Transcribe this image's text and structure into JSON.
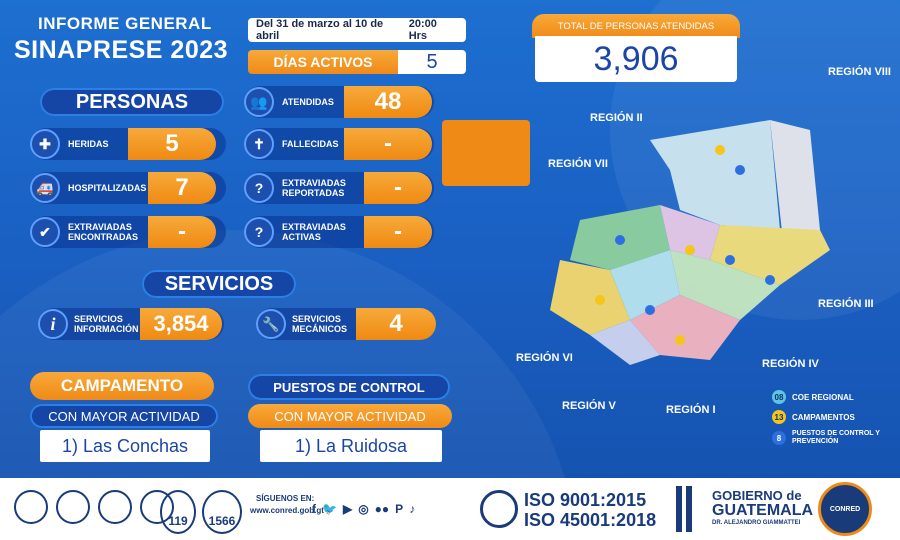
{
  "header": {
    "title_line1": "INFORME GENERAL",
    "title_line2": "SINAPRESE 2023"
  },
  "date_range": {
    "period": "Del 31 de marzo al 10 de abril",
    "time": "20:00 Hrs"
  },
  "dias_activos": {
    "label": "DÍAS ACTIVOS",
    "value": "5"
  },
  "total": {
    "label": "TOTAL DE PERSONAS ATENDIDAS",
    "value": "3,906"
  },
  "personas": {
    "heading": "PERSONAS",
    "heridas": {
      "label": "HERIDAS",
      "value": "5"
    },
    "hospitalizadas": {
      "label": "HOSPITALIZADAS",
      "value": "7"
    },
    "extraviadas_encontradas": {
      "label1": "EXTRAVIADAS",
      "label2": "ENCONTRADAS",
      "value": "-"
    },
    "atendidas": {
      "label": "ATENDIDAS",
      "value": "48"
    },
    "fallecidas": {
      "label": "FALLECIDAS",
      "value": "-"
    },
    "extraviadas_reportadas": {
      "label1": "EXTRAVIADAS",
      "label2": "REPORTADAS",
      "value": "-"
    },
    "extraviadas_activas": {
      "label1": "EXTRAVIADAS",
      "label2": "ACTIVAS",
      "value": "-"
    }
  },
  "servicios": {
    "heading": "SERVICIOS",
    "informacion": {
      "label1": "SERVICIOS",
      "label2": "INFORMACIÓN",
      "value": "3,854"
    },
    "mecanicos": {
      "label1": "SERVICIOS",
      "label2": "MECÁNICOS",
      "value": "4"
    }
  },
  "campamento": {
    "title": "CAMPAMENTO",
    "subtitle": "CON MAYOR ACTIVIDAD",
    "value": "1) Las Conchas"
  },
  "puestos": {
    "title": "PUESTOS DE CONTROL",
    "subtitle": "CON MAYOR ACTIVIDAD",
    "value": "1) La Ruidosa"
  },
  "map": {
    "regions": [
      "REGIÓN VIII",
      "REGIÓN II",
      "REGIÓN VII",
      "REGIÓN III",
      "REGIÓN VI",
      "REGIÓN IV",
      "REGIÓN V",
      "REGIÓN I"
    ],
    "legend": [
      {
        "num": "08",
        "label": "COE REGIONAL",
        "color": "#5ec4e6"
      },
      {
        "num": "13",
        "label": "CAMPAMENTOS",
        "color": "#f5c518"
      },
      {
        "num": "8",
        "label": "PUESTOS DE CONTROL Y PREVENCIÓN",
        "color": "#2b6fe0"
      }
    ]
  },
  "footer": {
    "siguenos": "SÍGUENOS EN:",
    "url": "www.conred.gob.gt",
    "num1": "119",
    "num2": "1566",
    "iso1": "ISO 9001:2015",
    "iso2": "ISO 45001:2018",
    "gob1": "GOBIERNO de",
    "gob2": "GUATEMALA",
    "gob3": "DR. ALEJANDRO GIAMMATTEI",
    "conred": "CONRED"
  }
}
